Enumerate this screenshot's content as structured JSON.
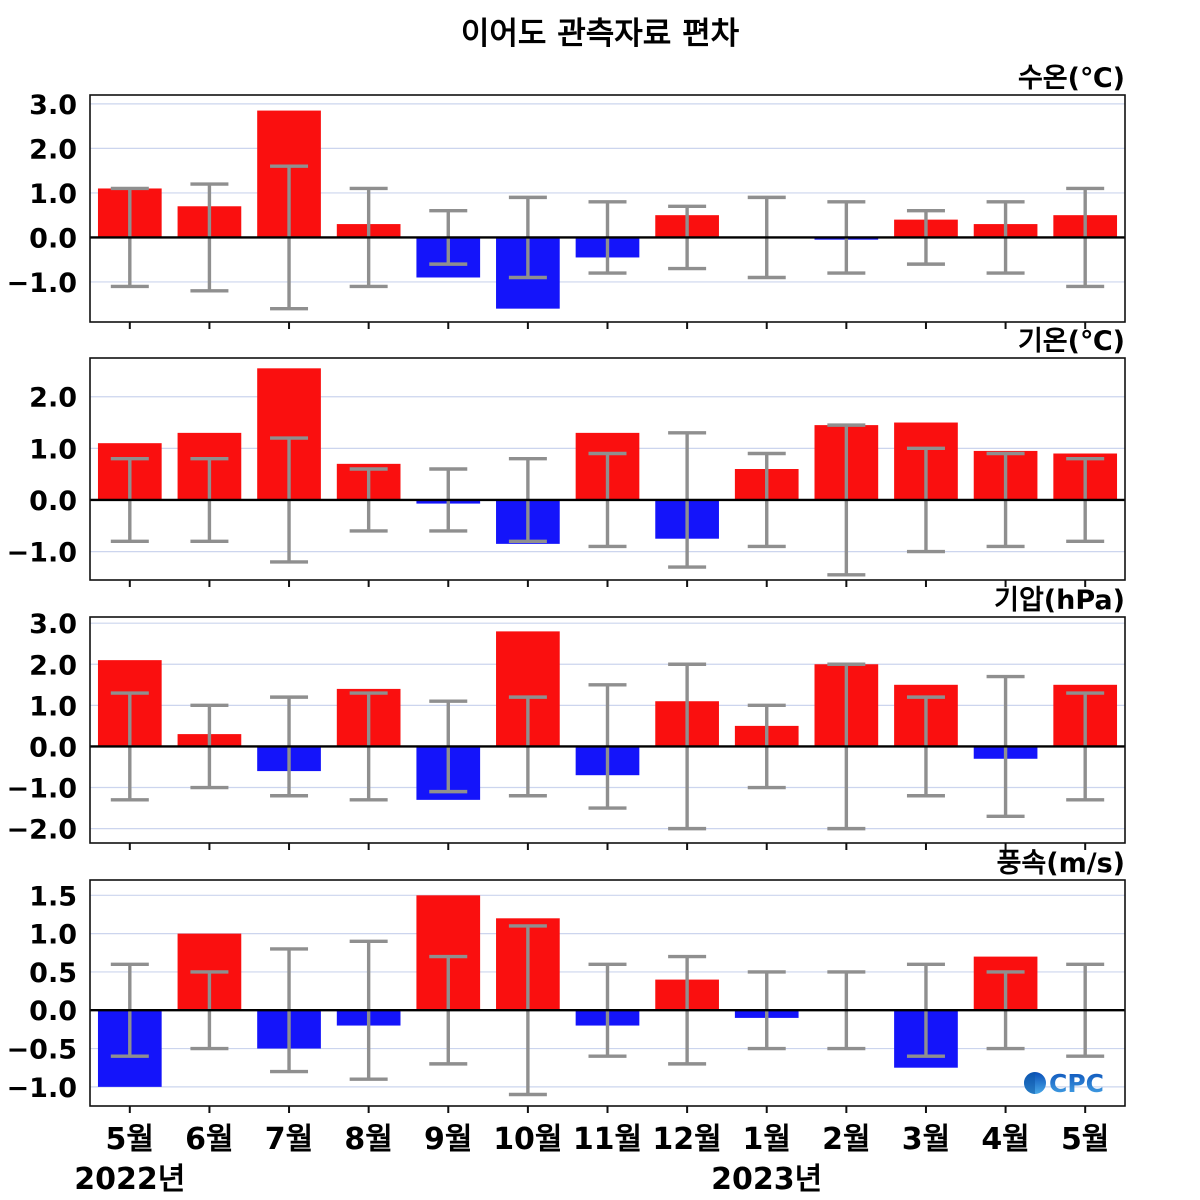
{
  "title": "이어도 관측자료 편차",
  "colors": {
    "positive": "#fa0f0f",
    "negative": "#1414fa",
    "error_bar": "#8f8f8f",
    "grid": "#ccd5ee",
    "axis": "#111111",
    "text": "#000000",
    "logo_blue_dark": "#0a4fb8",
    "logo_blue_light": "#48a8e8"
  },
  "logo": {
    "text": "CPC"
  },
  "x_axis": {
    "months": [
      "5월",
      "6월",
      "7월",
      "8월",
      "9월",
      "10월",
      "11월",
      "12월",
      "1월",
      "2월",
      "3월",
      "4월",
      "5월"
    ],
    "year_labels": [
      {
        "text": "2022년",
        "month_index": 0
      },
      {
        "text": "2023년",
        "month_index": 8
      }
    ]
  },
  "chart_data": [
    {
      "type": "bar",
      "title": "수온(℃)",
      "categories": [
        "5월",
        "6월",
        "7월",
        "8월",
        "9월",
        "10월",
        "11월",
        "12월",
        "1월",
        "2월",
        "3월",
        "4월",
        "5월"
      ],
      "values": [
        1.1,
        0.7,
        2.85,
        0.3,
        -0.9,
        -1.6,
        -0.45,
        0.5,
        0.0,
        -0.05,
        0.4,
        0.3,
        0.5
      ],
      "whisker_plus_minus": [
        1.1,
        1.2,
        1.6,
        1.1,
        0.6,
        0.9,
        0.8,
        0.7,
        0.9,
        0.8,
        0.6,
        0.8,
        1.1
      ],
      "yticks": [
        3.0,
        2.0,
        1.0,
        0.0,
        -1.0
      ],
      "ylim": [
        -1.9,
        3.2
      ],
      "grid": true,
      "legend": "none"
    },
    {
      "type": "bar",
      "title": "기온(℃)",
      "categories": [
        "5월",
        "6월",
        "7월",
        "8월",
        "9월",
        "10월",
        "11월",
        "12월",
        "1월",
        "2월",
        "3월",
        "4월",
        "5월"
      ],
      "values": [
        1.1,
        1.3,
        2.55,
        0.7,
        -0.07,
        -0.85,
        1.3,
        -0.75,
        0.6,
        1.45,
        1.5,
        0.95,
        0.9
      ],
      "whisker_plus_minus": [
        0.8,
        0.8,
        1.2,
        0.6,
        0.6,
        0.8,
        0.9,
        1.3,
        0.9,
        1.45,
        1.0,
        0.9,
        0.8
      ],
      "yticks": [
        2.0,
        1.0,
        0.0,
        -1.0
      ],
      "ylim": [
        -1.55,
        2.75
      ],
      "grid": true,
      "legend": "none"
    },
    {
      "type": "bar",
      "title": "기압(hPa)",
      "categories": [
        "5월",
        "6월",
        "7월",
        "8월",
        "9월",
        "10월",
        "11월",
        "12월",
        "1월",
        "2월",
        "3월",
        "4월",
        "5월"
      ],
      "values": [
        2.1,
        0.3,
        -0.6,
        1.4,
        -1.3,
        2.8,
        -0.7,
        1.1,
        0.5,
        2.0,
        1.5,
        -0.3,
        1.5
      ],
      "whisker_plus_minus": [
        1.3,
        1.0,
        1.2,
        1.3,
        1.1,
        1.2,
        1.5,
        2.0,
        1.0,
        2.0,
        1.2,
        1.7,
        1.3
      ],
      "yticks": [
        3.0,
        2.0,
        1.0,
        0.0,
        -1.0,
        -2.0
      ],
      "ylim": [
        -2.35,
        3.15
      ],
      "grid": true,
      "legend": "none"
    },
    {
      "type": "bar",
      "title": "풍속(m/s)",
      "categories": [
        "5월",
        "6월",
        "7월",
        "8월",
        "9월",
        "10월",
        "11월",
        "12월",
        "1월",
        "2월",
        "3월",
        "4월",
        "5월"
      ],
      "values": [
        -1.0,
        1.0,
        -0.5,
        -0.2,
        1.5,
        1.2,
        -0.2,
        0.4,
        -0.1,
        0.0,
        -0.75,
        0.7,
        0.0
      ],
      "whisker_plus_minus": [
        0.6,
        0.5,
        0.8,
        0.9,
        0.7,
        1.1,
        0.6,
        0.7,
        0.5,
        0.5,
        0.6,
        0.5,
        0.6
      ],
      "yticks": [
        1.5,
        1.0,
        0.5,
        0.0,
        -0.5,
        -1.0
      ],
      "ylim": [
        -1.25,
        1.7
      ],
      "grid": true,
      "legend": "none"
    }
  ]
}
